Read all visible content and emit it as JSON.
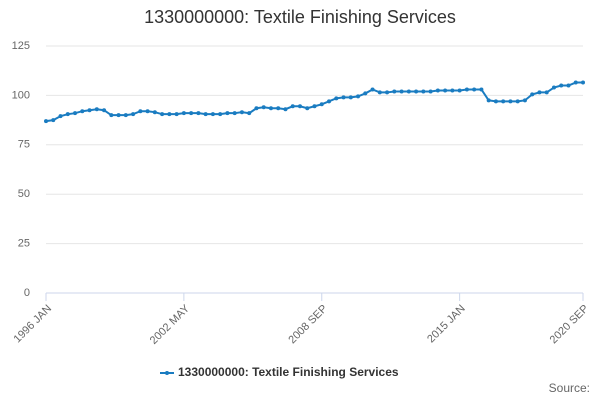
{
  "chart_data": {
    "type": "line",
    "title": "1330000000: Textile Finishing Services",
    "categories": [
      "1996 JAN",
      null,
      null,
      null,
      null,
      null,
      null,
      null,
      null,
      null,
      null,
      null,
      null,
      null,
      null,
      null,
      null,
      null,
      null,
      "2002 MAY",
      null,
      null,
      null,
      null,
      null,
      null,
      null,
      null,
      null,
      null,
      null,
      null,
      null,
      null,
      null,
      null,
      null,
      null,
      "2008 SEP",
      null,
      null,
      null,
      null,
      null,
      null,
      null,
      null,
      null,
      null,
      null,
      null,
      null,
      null,
      null,
      null,
      null,
      null,
      "2015 JAN",
      null,
      null,
      null,
      null,
      null,
      null,
      null,
      null,
      null,
      null,
      null,
      null,
      null,
      null,
      null,
      null,
      "2020 SEP"
    ],
    "series": [
      {
        "name": "1330000000: Textile Finishing Services",
        "color": "#1a7cc1",
        "values": [
          87,
          87.5,
          89.5,
          90.5,
          91,
          92,
          92.5,
          93,
          92.5,
          90,
          90,
          90,
          90.5,
          92,
          92,
          91.5,
          90.5,
          90.5,
          90.5,
          91,
          91,
          91,
          90.5,
          90.5,
          90.5,
          91,
          91,
          91.5,
          91,
          93.5,
          94,
          93.5,
          93.5,
          93,
          94.5,
          94.5,
          93.5,
          94.5,
          95.5,
          97,
          98.5,
          99,
          99,
          99.5,
          101,
          103,
          101.5,
          101.5,
          102,
          102,
          102,
          102,
          102,
          102,
          102.5,
          102.5,
          102.5,
          102.5,
          103,
          103,
          103,
          97.5,
          97,
          97,
          97,
          97,
          97.5,
          100.5,
          101.5,
          101.5,
          104,
          105,
          105,
          106.5,
          106.5
        ]
      }
    ],
    "ylim": [
      0,
      125
    ],
    "yticks": [
      0,
      25,
      50,
      75,
      100,
      125
    ],
    "grid": true,
    "source": "Source:"
  }
}
